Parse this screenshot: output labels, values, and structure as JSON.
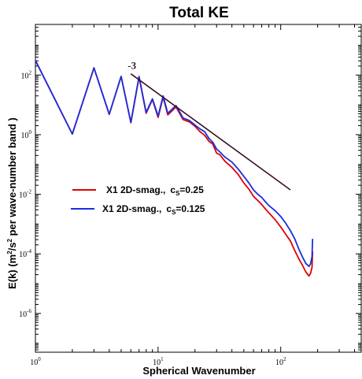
{
  "chart_data": {
    "type": "line",
    "title": "Total KE",
    "xlabel": "Spherical Wavenumber",
    "ylabel": "E(k) (m2/s2 per wave-number band )",
    "xscale": "log",
    "yscale": "log",
    "xlim": [
      1,
      460
    ],
    "ylim": [
      5e-08,
      5000
    ],
    "x_ticks": [
      {
        "base": "10",
        "exp": "0",
        "value": 1
      },
      {
        "base": "10",
        "exp": "1",
        "value": 10
      },
      {
        "base": "10",
        "exp": "2",
        "value": 100
      }
    ],
    "y_ticks": [
      {
        "base": "10",
        "exp": "-6",
        "value": 1e-06
      },
      {
        "base": "10",
        "exp": "-4",
        "value": 0.0001
      },
      {
        "base": "10",
        "exp": "-2",
        "value": 0.01
      },
      {
        "base": "10",
        "exp": "0",
        "value": 1
      },
      {
        "base": "10",
        "exp": "2",
        "value": 100
      }
    ],
    "series": [
      {
        "name": "X1 2D-smag., cS=0.25",
        "color": "#dd0000",
        "points": [
          [
            1,
            310
          ],
          [
            2,
            1.05
          ],
          [
            3,
            175
          ],
          [
            4,
            4.8
          ],
          [
            5,
            90
          ],
          [
            6,
            2.5
          ],
          [
            7,
            85
          ],
          [
            8,
            5.2
          ],
          [
            9,
            15
          ],
          [
            10,
            3.8
          ],
          [
            11,
            18
          ],
          [
            12,
            4.6
          ],
          [
            14,
            8.5
          ],
          [
            16,
            3.2
          ],
          [
            18,
            2.7
          ],
          [
            20,
            1.9
          ],
          [
            22,
            1.25
          ],
          [
            24,
            0.95
          ],
          [
            26,
            0.6
          ],
          [
            28,
            0.48
          ],
          [
            30,
            0.24
          ],
          [
            32,
            0.21
          ],
          [
            35,
            0.13
          ],
          [
            40,
            0.08
          ],
          [
            45,
            0.046
          ],
          [
            50,
            0.024
          ],
          [
            55,
            0.015
          ],
          [
            60,
            0.0085
          ],
          [
            65,
            0.0062
          ],
          [
            70,
            0.0045
          ],
          [
            75,
            0.0032
          ],
          [
            80,
            0.0024
          ],
          [
            90,
            0.0014
          ],
          [
            100,
            0.0008
          ],
          [
            110,
            0.00045
          ],
          [
            120,
            0.00027
          ],
          [
            130,
            0.00013
          ],
          [
            140,
            7e-05
          ],
          [
            150,
            4.2e-05
          ],
          [
            160,
            2.5e-05
          ],
          [
            170,
            1.8e-05
          ],
          [
            175,
            2.2e-05
          ],
          [
            180,
            3.5e-05
          ],
          [
            182,
            0.00012
          ]
        ]
      },
      {
        "name": "X1 2D-smag., cS=0.125",
        "color": "#1a2ee0",
        "points": [
          [
            1,
            310
          ],
          [
            2,
            1.05
          ],
          [
            3,
            175
          ],
          [
            4,
            4.8
          ],
          [
            5,
            90
          ],
          [
            6,
            2.6
          ],
          [
            7,
            90
          ],
          [
            8,
            5.6
          ],
          [
            9,
            16
          ],
          [
            10,
            4.2
          ],
          [
            11,
            20
          ],
          [
            12,
            5.2
          ],
          [
            14,
            9.5
          ],
          [
            16,
            3.6
          ],
          [
            18,
            3
          ],
          [
            20,
            2.1
          ],
          [
            22,
            1.55
          ],
          [
            24,
            1.25
          ],
          [
            26,
            0.75
          ],
          [
            28,
            0.55
          ],
          [
            30,
            0.33
          ],
          [
            32,
            0.26
          ],
          [
            35,
            0.18
          ],
          [
            40,
            0.12
          ],
          [
            45,
            0.07
          ],
          [
            50,
            0.04
          ],
          [
            55,
            0.024
          ],
          [
            60,
            0.014
          ],
          [
            65,
            0.01
          ],
          [
            70,
            0.0078
          ],
          [
            75,
            0.0056
          ],
          [
            80,
            0.0042
          ],
          [
            90,
            0.0028
          ],
          [
            100,
            0.0018
          ],
          [
            110,
            0.00105
          ],
          [
            120,
            0.0006
          ],
          [
            130,
            0.00032
          ],
          [
            140,
            0.00015
          ],
          [
            150,
            8e-05
          ],
          [
            160,
            4.8e-05
          ],
          [
            170,
            3.8e-05
          ],
          [
            175,
            4.6e-05
          ],
          [
            180,
            8e-05
          ],
          [
            182,
            0.00032
          ]
        ]
      }
    ],
    "reference_line": {
      "label": "-3",
      "color": "#3a0f2a",
      "x": [
        6,
        120
      ],
      "y": [
        110,
        0.014
      ]
    },
    "legend": {
      "placement": "middle-left",
      "entries": [
        {
          "prefix": "X1 2D-smag.,",
          "param": "c",
          "sub": "S",
          "value": "=0.25"
        },
        {
          "prefix": "X1 2D-smag.,",
          "param": "c",
          "sub": "S",
          "value": "=0.125"
        }
      ]
    },
    "ylabel_parts": {
      "a": "E(k) (m",
      "b": "2",
      "c": "/s",
      "d": "2",
      "e": " per wave-number band )"
    },
    "grid": false
  }
}
